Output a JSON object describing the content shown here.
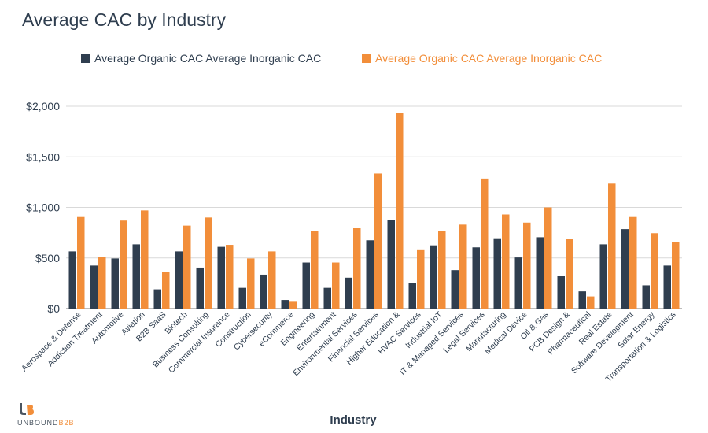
{
  "page": {
    "title": "Average CAC by Industry"
  },
  "logo": {
    "main": "UNBOUND",
    "accent": "B2B",
    "glyph": "UB"
  },
  "colors": {
    "organic": "#2f3e4f",
    "inorganic": "#f28e3a",
    "grid": "#d9d9d9",
    "text": "#2f3e4f"
  },
  "chart_data": {
    "type": "bar",
    "title": "Average CAC by Industry",
    "xlabel": "Industry",
    "ylabel": "",
    "ylim": [
      0,
      2000
    ],
    "yticks": [
      0,
      500,
      1000,
      1500,
      2000
    ],
    "ytick_labels": [
      "$0",
      "$500",
      "$1,000",
      "$1,500",
      "$2,000"
    ],
    "grid": true,
    "legend_position": "top",
    "categories": [
      "Aerospace & Defense",
      "Addiction Treatment",
      "Automotive",
      "Aviation",
      "B2B SaaS",
      "Biotech",
      "Business Consulting",
      "Commercial Insurance",
      "Construction",
      "Cybersecurity",
      "eCommerce",
      "Engineering",
      "Entertainment",
      "Environmental Services",
      "Financial Services",
      "Higher Education &",
      "HVAC Services",
      "Industrial IoT",
      "IT & Managed Services",
      "Legal Services",
      "Manufacturing",
      "Medical Device",
      "Oil & Gas",
      "PCB Design &",
      "Pharmaceutical",
      "Real Estate",
      "Software Development",
      "Solar Energy",
      "Transportation & Logistics"
    ],
    "series": [
      {
        "name": "Average Organic CAC Average Inorganic CAC",
        "values": [
          565,
          425,
          495,
          635,
          190,
          565,
          405,
          610,
          205,
          335,
          85,
          455,
          205,
          305,
          675,
          875,
          250,
          625,
          380,
          605,
          695,
          505,
          705,
          325,
          170,
          635,
          785,
          230,
          425
        ]
      },
      {
        "name": "Average Organic CAC Average Inorganic CAC",
        "values": [
          905,
          510,
          870,
          970,
          360,
          820,
          900,
          630,
          495,
          565,
          75,
          770,
          455,
          795,
          1335,
          1930,
          585,
          770,
          830,
          1285,
          930,
          850,
          1000,
          685,
          120,
          1235,
          905,
          745,
          655
        ]
      }
    ]
  }
}
